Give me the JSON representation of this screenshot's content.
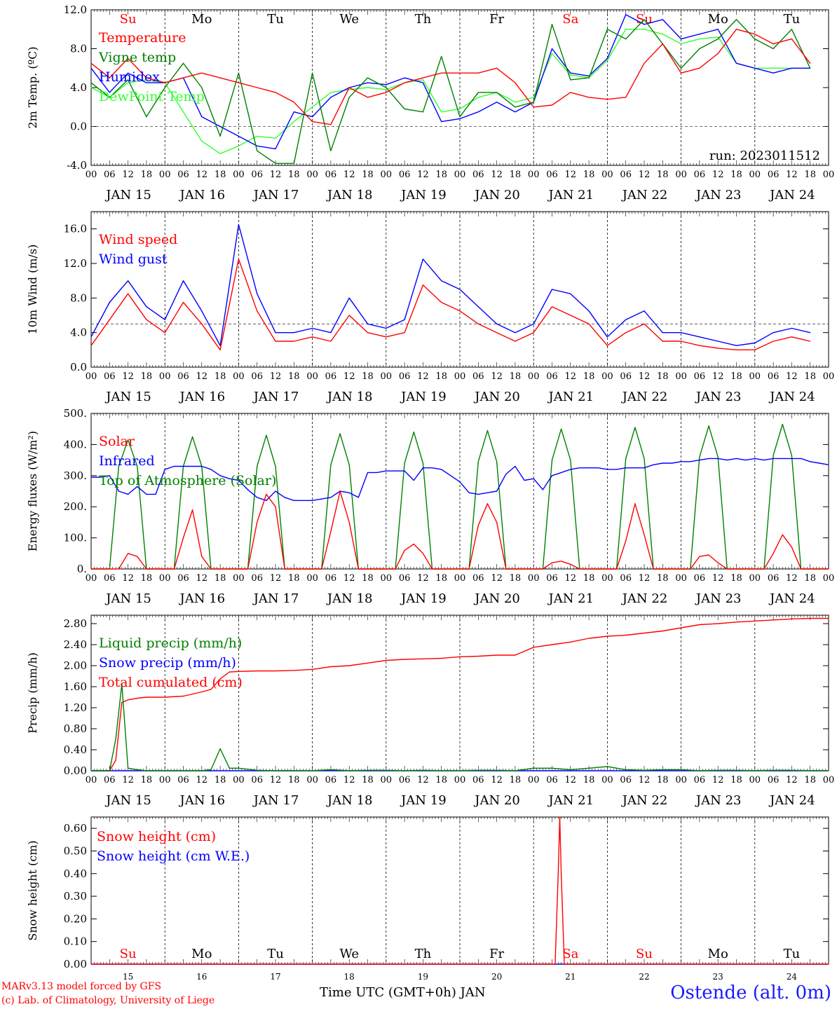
{
  "days": [
    "Su",
    "Mo",
    "Tu",
    "We",
    "Th",
    "Fr",
    "Sa",
    "Su",
    "Mo",
    "Tu"
  ],
  "day_colors": [
    "#ff0000",
    "#000000",
    "#000000",
    "#000000",
    "#000000",
    "#000000",
    "#ff0000",
    "#ff0000",
    "#000000",
    "#000000"
  ],
  "dates": [
    "JAN 15",
    "JAN 16",
    "JAN 17",
    "JAN 18",
    "JAN 19",
    "JAN 20",
    "JAN 21",
    "JAN 22",
    "JAN 23",
    "JAN 24"
  ],
  "date_numbers": [
    "15",
    "16",
    "17",
    "18",
    "19",
    "20",
    "21",
    "22",
    "23",
    "24"
  ],
  "hour_ticks": [
    "00",
    "06",
    "12",
    "18"
  ],
  "footer": {
    "credit_line1": "MARv3.13 model forced by GFS",
    "credit_line2": "(c) Lab. of Climatology, University of Liege",
    "time_axis_label": "Time UTC (GMT+0h) JAN",
    "station": "Ostende (alt. 0m)"
  },
  "chart_data": [
    {
      "type": "line",
      "ylabel": "2m Temp. (ºC)",
      "ylim": [
        -4,
        12
      ],
      "yticks": [
        "-4.0",
        "0.0",
        "4.0",
        "8.0",
        "12.0"
      ],
      "yticks_values": [
        -4,
        0,
        4,
        8,
        12
      ],
      "refline": 0,
      "annotation": "run: 2023011512",
      "x_hours": [
        0,
        6,
        12,
        18,
        24,
        30,
        36,
        42,
        48,
        54,
        60,
        66,
        72,
        78,
        84,
        90,
        96,
        102,
        108,
        114,
        120,
        126,
        132,
        138,
        144,
        150,
        156,
        162,
        168,
        174,
        180,
        186,
        192,
        198,
        204,
        210,
        216,
        222,
        228,
        234
      ],
      "series": [
        {
          "name": "Temperature",
          "color": "#ff0000",
          "values": [
            6.5,
            5.0,
            7.0,
            5.0,
            4.5,
            5.0,
            5.5,
            5.0,
            4.5,
            4.0,
            3.5,
            2.5,
            0.5,
            0.2,
            4.0,
            3.0,
            3.5,
            4.5,
            5.0,
            5.5,
            5.5,
            5.5,
            6.0,
            4.5,
            2.0,
            2.2,
            3.5,
            3.0,
            2.8,
            3.0,
            6.5,
            8.5,
            5.5,
            6.0,
            7.5,
            10.0,
            9.5,
            8.5,
            9.0,
            6.5
          ]
        },
        {
          "name": "Vigne temp",
          "color": "#008000",
          "values": [
            4.5,
            3.0,
            4.8,
            1.0,
            4.0,
            6.5,
            4.0,
            -1.0,
            5.5,
            -2.5,
            -3.8,
            -3.8,
            5.5,
            -2.5,
            3.0,
            5.0,
            4.0,
            1.8,
            1.5,
            7.2,
            1.0,
            3.5,
            3.5,
            2.0,
            2.5,
            10.5,
            4.8,
            5.0,
            10.0,
            9.0,
            11.0,
            8.5,
            6.0,
            8.0,
            9.0,
            11.0,
            9.0,
            8.0,
            10.0,
            6.0
          ]
        },
        {
          "name": "Humidex",
          "color": "#0000ff",
          "values": [
            6.0,
            3.5,
            5.5,
            4.5,
            4.5,
            5.0,
            1.0,
            0.0,
            -1.0,
            -2.0,
            -2.3,
            1.5,
            1.0,
            3.0,
            4.0,
            4.5,
            4.3,
            5.0,
            4.5,
            0.5,
            0.8,
            1.5,
            2.5,
            1.5,
            2.5,
            8.0,
            5.5,
            5.2,
            7.0,
            11.5,
            10.5,
            11.0,
            9.0,
            9.5,
            10.0,
            6.5,
            6.0,
            5.5,
            6.0,
            6.0
          ]
        },
        {
          "name": "DewPoint Temp",
          "color": "#33ff33",
          "values": [
            4.0,
            3.0,
            4.5,
            4.8,
            4.5,
            1.5,
            -1.5,
            -2.8,
            -2.0,
            -1.0,
            -1.2,
            0.5,
            2.0,
            3.5,
            3.8,
            4.0,
            3.8,
            4.5,
            4.8,
            1.5,
            1.8,
            3.0,
            3.5,
            2.5,
            3.0,
            7.5,
            5.3,
            5.0,
            6.8,
            10.0,
            10.0,
            9.5,
            8.5,
            9.0,
            9.2,
            6.5,
            6.0,
            6.0,
            6.0,
            6.0
          ]
        }
      ]
    },
    {
      "type": "line",
      "ylabel": "10m Wind (m/s)",
      "ylim": [
        0,
        18
      ],
      "yticks": [
        "0.0",
        "4.0",
        "8.0",
        "12.0",
        "16.0"
      ],
      "yticks_values": [
        0,
        4,
        8,
        12,
        16
      ],
      "refline": 5,
      "x_hours": [
        0,
        6,
        12,
        18,
        24,
        30,
        36,
        42,
        48,
        54,
        60,
        66,
        72,
        78,
        84,
        90,
        96,
        102,
        108,
        114,
        120,
        126,
        132,
        138,
        144,
        150,
        156,
        162,
        168,
        174,
        180,
        186,
        192,
        198,
        204,
        210,
        216,
        222,
        228,
        234
      ],
      "series": [
        {
          "name": "Wind speed",
          "color": "#ff0000",
          "values": [
            2.5,
            5.5,
            8.5,
            5.5,
            4.0,
            7.5,
            5.0,
            2.0,
            12.5,
            6.5,
            3.0,
            3.0,
            3.5,
            3.0,
            6.0,
            4.0,
            3.5,
            4.0,
            9.5,
            7.5,
            6.5,
            5.0,
            4.0,
            3.0,
            4.0,
            7.0,
            6.0,
            5.0,
            2.5,
            4.0,
            5.0,
            3.0,
            3.0,
            2.5,
            2.2,
            2.0,
            2.0,
            3.0,
            3.5,
            3.0
          ]
        },
        {
          "name": "Wind gust",
          "color": "#0000ff",
          "values": [
            3.5,
            7.5,
            10.0,
            7.0,
            5.5,
            10.0,
            6.5,
            2.5,
            16.5,
            8.5,
            4.0,
            4.0,
            4.5,
            4.0,
            8.0,
            5.0,
            4.5,
            5.5,
            12.5,
            10.0,
            9.0,
            7.0,
            5.0,
            4.0,
            5.0,
            9.0,
            8.5,
            6.5,
            3.5,
            5.5,
            6.5,
            4.0,
            4.0,
            3.5,
            3.0,
            2.5,
            2.8,
            4.0,
            4.5,
            4.0
          ]
        }
      ]
    },
    {
      "type": "line",
      "ylabel": "Energy fluxes (W/m²)",
      "ylim": [
        0,
        500
      ],
      "yticks": [
        "0.",
        "100.",
        "200.",
        "300.",
        "400.",
        "500."
      ],
      "yticks_values": [
        0,
        100,
        200,
        300,
        400,
        500
      ],
      "x_hours": [
        0,
        3,
        6,
        9,
        12,
        15,
        18,
        21,
        24,
        27,
        30,
        33,
        36,
        39,
        42,
        45,
        48,
        51,
        54,
        57,
        60,
        63,
        66,
        69,
        72,
        75,
        78,
        81,
        84,
        87,
        90,
        93,
        96,
        99,
        102,
        105,
        108,
        111,
        114,
        117,
        120,
        123,
        126,
        129,
        132,
        135,
        138,
        141,
        144,
        147,
        150,
        153,
        156,
        159,
        162,
        165,
        168,
        171,
        174,
        177,
        180,
        183,
        186,
        189,
        192,
        195,
        198,
        201,
        204,
        207,
        210,
        213,
        216,
        219,
        222,
        225,
        228,
        231,
        234,
        237,
        240
      ],
      "series": [
        {
          "name": "Solar",
          "color": "#ff0000",
          "values": [
            0,
            0,
            0,
            0,
            50,
            40,
            0,
            0,
            0,
            0,
            100,
            190,
            40,
            0,
            0,
            0,
            0,
            0,
            150,
            240,
            200,
            0,
            0,
            0,
            0,
            0,
            120,
            250,
            150,
            0,
            0,
            0,
            0,
            0,
            60,
            80,
            50,
            0,
            0,
            0,
            0,
            0,
            140,
            210,
            150,
            0,
            0,
            0,
            0,
            0,
            20,
            25,
            15,
            0,
            0,
            0,
            0,
            0,
            90,
            210,
            110,
            0,
            0,
            0,
            0,
            0,
            40,
            45,
            20,
            0,
            0,
            0,
            0,
            0,
            50,
            110,
            70,
            0,
            0,
            0,
            0
          ]
        },
        {
          "name": "Infrared",
          "color": "#0000ff",
          "values": [
            295,
            295,
            300,
            250,
            240,
            265,
            240,
            240,
            320,
            330,
            330,
            330,
            330,
            320,
            300,
            290,
            285,
            255,
            230,
            220,
            250,
            230,
            220,
            220,
            220,
            225,
            230,
            250,
            245,
            230,
            310,
            310,
            315,
            315,
            315,
            285,
            325,
            325,
            320,
            300,
            280,
            245,
            240,
            245,
            250,
            305,
            330,
            285,
            290,
            255,
            300,
            310,
            320,
            325,
            325,
            325,
            320,
            320,
            325,
            325,
            325,
            335,
            340,
            340,
            345,
            345,
            350,
            355,
            355,
            350,
            355,
            350,
            355,
            350,
            355,
            355,
            355,
            355,
            345,
            340,
            335
          ]
        },
        {
          "name": "Top of Atmosphere (Solar)",
          "color": "#008000",
          "values": [
            0,
            0,
            0,
            330,
            415,
            330,
            0,
            0,
            0,
            0,
            330,
            425,
            330,
            0,
            0,
            0,
            0,
            0,
            330,
            430,
            330,
            0,
            0,
            0,
            0,
            0,
            335,
            435,
            335,
            0,
            0,
            0,
            0,
            0,
            340,
            440,
            340,
            0,
            0,
            0,
            0,
            0,
            345,
            445,
            345,
            0,
            0,
            0,
            0,
            0,
            350,
            450,
            350,
            0,
            0,
            0,
            0,
            0,
            355,
            455,
            355,
            0,
            0,
            0,
            0,
            0,
            360,
            460,
            360,
            0,
            0,
            0,
            0,
            0,
            365,
            465,
            365,
            0,
            0,
            0,
            0
          ]
        }
      ]
    },
    {
      "type": "line",
      "ylabel": "Precip (mm/h)",
      "ylim": [
        0,
        2.96
      ],
      "yticks": [
        "0.00",
        "0.40",
        "0.80",
        "1.20",
        "1.60",
        "2.00",
        "2.40",
        "2.80"
      ],
      "yticks_values": [
        0,
        0.4,
        0.8,
        1.2,
        1.6,
        2.0,
        2.4,
        2.8
      ],
      "x_hours": [
        0,
        6,
        8,
        10,
        12,
        15,
        18,
        24,
        30,
        36,
        39,
        42,
        45,
        48,
        54,
        60,
        66,
        72,
        78,
        84,
        90,
        96,
        102,
        108,
        114,
        120,
        126,
        132,
        138,
        144,
        150,
        156,
        162,
        168,
        174,
        180,
        186,
        192,
        198,
        204,
        210,
        216,
        222,
        228,
        234,
        240
      ],
      "series": [
        {
          "name": "Liquid precip (mm/h)",
          "color": "#008000",
          "values": [
            0,
            0,
            0.6,
            1.65,
            0.05,
            0.02,
            0,
            0,
            0,
            0,
            0.02,
            0.42,
            0.05,
            0.05,
            0.01,
            0,
            0,
            0,
            0.02,
            0,
            0.01,
            0.01,
            0,
            0.01,
            0,
            0,
            0.01,
            0.01,
            0,
            0.05,
            0.05,
            0.02,
            0.05,
            0.08,
            0.02,
            0.01,
            0.02,
            0.02,
            0,
            0.01,
            0.01,
            0,
            0.01,
            0.01,
            0,
            0
          ]
        },
        {
          "name": "Snow precip (mm/h)",
          "color": "#0000ff",
          "values": [
            0,
            0,
            0,
            0,
            0,
            0,
            0,
            0,
            0,
            0,
            0,
            0,
            0,
            0,
            0,
            0,
            0,
            0,
            0,
            0,
            0,
            0,
            0,
            0,
            0,
            0,
            0,
            0,
            0,
            0,
            0,
            0,
            0,
            0,
            0,
            0,
            0,
            0,
            0,
            0,
            0,
            0,
            0,
            0,
            0,
            0
          ]
        },
        {
          "name": "Total cumulated (cm)",
          "color": "#ff0000",
          "values": [
            0,
            0,
            0.2,
            1.3,
            1.35,
            1.38,
            1.4,
            1.4,
            1.42,
            1.5,
            1.55,
            1.75,
            1.88,
            1.89,
            1.9,
            1.9,
            1.91,
            1.93,
            1.98,
            2.0,
            2.05,
            2.1,
            2.12,
            2.13,
            2.14,
            2.17,
            2.18,
            2.2,
            2.2,
            2.35,
            2.4,
            2.45,
            2.52,
            2.56,
            2.58,
            2.62,
            2.66,
            2.72,
            2.78,
            2.8,
            2.83,
            2.85,
            2.87,
            2.89,
            2.9,
            2.9
          ]
        }
      ]
    },
    {
      "type": "line",
      "ylabel": "Snow height (cm)",
      "ylim": [
        0,
        0.65
      ],
      "yticks": [
        "0.00",
        "0.10",
        "0.20",
        "0.30",
        "0.40",
        "0.50",
        "0.60"
      ],
      "yticks_values": [
        0,
        0.1,
        0.2,
        0.3,
        0.4,
        0.5,
        0.6
      ],
      "x_hours": [
        0,
        150,
        151,
        152,
        152.5,
        153,
        154,
        240
      ],
      "series": [
        {
          "name": "Snow height (cm)",
          "color": "#ff0000",
          "values": [
            0,
            0,
            0,
            0.4,
            0.65,
            0.4,
            0,
            0
          ]
        },
        {
          "name": "Snow height (cm W.E.)",
          "color": "#0000ff",
          "values": [
            0,
            0,
            0,
            0,
            0,
            0,
            0,
            0
          ]
        }
      ]
    }
  ]
}
